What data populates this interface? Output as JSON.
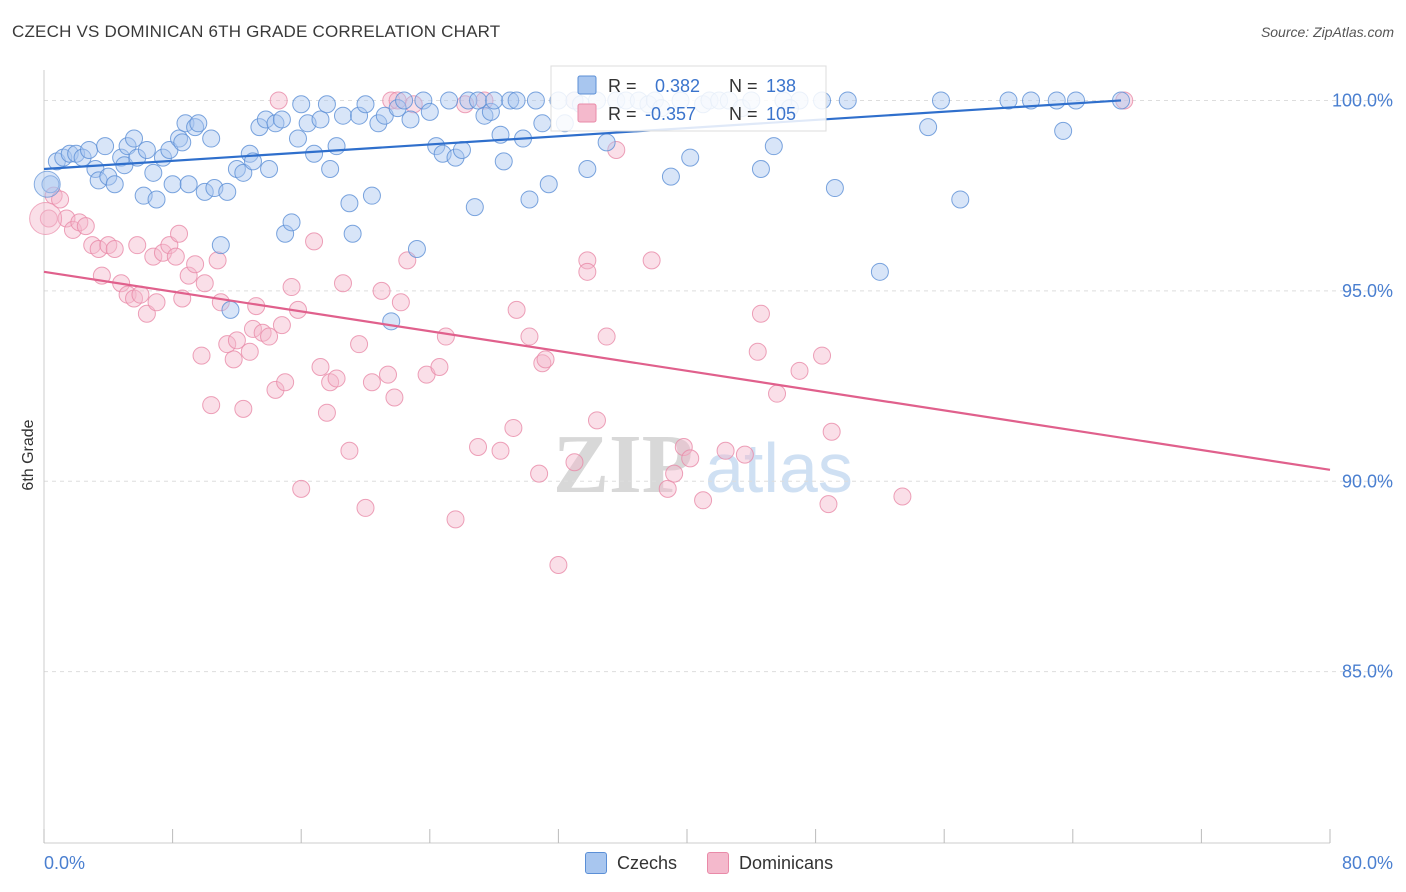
{
  "title": "CZECH VS DOMINICAN 6TH GRADE CORRELATION CHART",
  "source": "Source: ZipAtlas.com",
  "watermark": {
    "zip": "ZIP",
    "atlas": "atlas"
  },
  "legend": {
    "r_label": "R =",
    "n_label": "N =",
    "series": [
      {
        "name": "Czechs",
        "r": "0.382",
        "n": "138"
      },
      {
        "name": "Dominicans",
        "r": "-0.357",
        "n": "105"
      }
    ]
  },
  "colors": {
    "czech_fill": "#a8c6ef",
    "czech_stroke": "#5b8fd6",
    "czech_line": "#2f6fcc",
    "dominican_fill": "#f4b9cc",
    "dominican_stroke": "#e98aa8",
    "dominican_line": "#e0608c",
    "tick_text": "#4a7fd0",
    "grid": "#dddddd"
  },
  "chart_data": {
    "type": "scatter",
    "title": "CZECH VS DOMINICAN 6TH GRADE CORRELATION CHART",
    "xlabel": "",
    "ylabel": "6th Grade",
    "xlim": [
      0,
      80
    ],
    "ylim": [
      80.5,
      100.8
    ],
    "x_tick_labels": [
      "0.0%",
      "80.0%"
    ],
    "y_ticks": [
      85,
      90,
      95,
      100
    ],
    "y_tick_labels": [
      "85.0%",
      "90.0%",
      "95.0%",
      "100.0%"
    ],
    "grid": true,
    "legend_position": "top-center",
    "series": [
      {
        "name": "Czechs",
        "r": 0.382,
        "n": 138,
        "trend": [
          [
            0,
            98.2
          ],
          [
            67,
            100.0
          ]
        ],
        "points": [
          [
            0.4,
            97.8
          ],
          [
            0.8,
            98.4
          ],
          [
            1.2,
            98.5
          ],
          [
            1.6,
            98.6
          ],
          [
            2.0,
            98.6
          ],
          [
            2.4,
            98.5
          ],
          [
            2.8,
            98.7
          ],
          [
            3.2,
            98.2
          ],
          [
            3.4,
            97.9
          ],
          [
            3.8,
            98.8
          ],
          [
            4.0,
            98.0
          ],
          [
            4.4,
            97.8
          ],
          [
            4.8,
            98.5
          ],
          [
            5.0,
            98.3
          ],
          [
            5.2,
            98.8
          ],
          [
            5.6,
            99.0
          ],
          [
            5.8,
            98.5
          ],
          [
            6.2,
            97.5
          ],
          [
            6.4,
            98.7
          ],
          [
            6.8,
            98.1
          ],
          [
            7.0,
            97.4
          ],
          [
            7.4,
            98.5
          ],
          [
            7.8,
            98.7
          ],
          [
            8.0,
            97.8
          ],
          [
            8.4,
            99.0
          ],
          [
            8.6,
            98.9
          ],
          [
            8.8,
            99.4
          ],
          [
            9.0,
            97.8
          ],
          [
            9.4,
            99.3
          ],
          [
            9.6,
            99.4
          ],
          [
            10.0,
            97.6
          ],
          [
            10.4,
            99.0
          ],
          [
            10.6,
            97.7
          ],
          [
            11.0,
            96.2
          ],
          [
            11.4,
            97.6
          ],
          [
            11.6,
            94.5
          ],
          [
            12.0,
            98.2
          ],
          [
            12.4,
            98.1
          ],
          [
            12.8,
            98.6
          ],
          [
            13.0,
            98.4
          ],
          [
            13.4,
            99.3
          ],
          [
            13.8,
            99.5
          ],
          [
            14.0,
            98.2
          ],
          [
            14.4,
            99.4
          ],
          [
            14.8,
            99.5
          ],
          [
            15.0,
            96.5
          ],
          [
            15.4,
            96.8
          ],
          [
            15.8,
            99.0
          ],
          [
            16.0,
            99.9
          ],
          [
            16.4,
            99.4
          ],
          [
            16.8,
            98.6
          ],
          [
            17.2,
            99.5
          ],
          [
            17.6,
            99.9
          ],
          [
            17.8,
            98.2
          ],
          [
            18.2,
            98.8
          ],
          [
            18.6,
            99.6
          ],
          [
            19.0,
            97.3
          ],
          [
            19.2,
            96.5
          ],
          [
            19.6,
            99.6
          ],
          [
            20.0,
            99.9
          ],
          [
            20.4,
            97.5
          ],
          [
            20.8,
            99.4
          ],
          [
            21.2,
            99.6
          ],
          [
            21.6,
            94.2
          ],
          [
            22.0,
            99.8
          ],
          [
            22.4,
            100.0
          ],
          [
            22.8,
            99.5
          ],
          [
            23.2,
            96.1
          ],
          [
            23.6,
            100.0
          ],
          [
            24.0,
            99.7
          ],
          [
            24.4,
            98.8
          ],
          [
            24.8,
            98.6
          ],
          [
            25.2,
            100.0
          ],
          [
            25.6,
            98.5
          ],
          [
            26.0,
            98.7
          ],
          [
            26.4,
            100.0
          ],
          [
            26.8,
            97.2
          ],
          [
            27.0,
            100.0
          ],
          [
            27.4,
            99.6
          ],
          [
            27.8,
            99.7
          ],
          [
            28.0,
            100.0
          ],
          [
            28.4,
            99.1
          ],
          [
            28.6,
            98.4
          ],
          [
            29.0,
            100.0
          ],
          [
            29.4,
            100.0
          ],
          [
            29.8,
            99.0
          ],
          [
            30.2,
            97.4
          ],
          [
            30.6,
            100.0
          ],
          [
            31.0,
            99.4
          ],
          [
            31.4,
            97.8
          ],
          [
            32.0,
            100.0
          ],
          [
            32.4,
            99.4
          ],
          [
            33.0,
            100.0
          ],
          [
            33.4,
            99.9
          ],
          [
            33.8,
            98.2
          ],
          [
            34.4,
            100.0
          ],
          [
            35.0,
            98.9
          ],
          [
            35.6,
            100.0
          ],
          [
            36.2,
            100.0
          ],
          [
            37.0,
            100.0
          ],
          [
            37.6,
            99.9
          ],
          [
            38.0,
            100.0
          ],
          [
            38.4,
            99.8
          ],
          [
            39.0,
            98.0
          ],
          [
            39.6,
            100.0
          ],
          [
            40.2,
            98.5
          ],
          [
            41.0,
            99.9
          ],
          [
            41.4,
            100.0
          ],
          [
            42.0,
            100.0
          ],
          [
            42.6,
            100.0
          ],
          [
            43.4,
            99.8
          ],
          [
            44.0,
            100.0
          ],
          [
            44.6,
            98.2
          ],
          [
            45.4,
            98.8
          ],
          [
            46.0,
            100.0
          ],
          [
            47.0,
            100.0
          ],
          [
            48.4,
            100.0
          ],
          [
            49.2,
            97.7
          ],
          [
            50.0,
            100.0
          ],
          [
            52.0,
            95.5
          ],
          [
            55.8,
            100.0
          ],
          [
            55.0,
            99.3
          ],
          [
            57.0,
            97.4
          ],
          [
            60.0,
            100.0
          ],
          [
            61.4,
            100.0
          ],
          [
            63.0,
            100.0
          ],
          [
            63.4,
            99.2
          ],
          [
            64.2,
            100.0
          ],
          [
            67.0,
            100.0
          ],
          [
            46.4,
            99.8
          ]
        ]
      },
      {
        "name": "Dominicans",
        "r": -0.357,
        "n": 105,
        "trend": [
          [
            0,
            95.5
          ],
          [
            80,
            90.3
          ]
        ],
        "points": [
          [
            0.3,
            96.9
          ],
          [
            0.6,
            97.5
          ],
          [
            1.0,
            97.4
          ],
          [
            1.4,
            96.9
          ],
          [
            1.8,
            96.6
          ],
          [
            2.2,
            96.8
          ],
          [
            2.6,
            96.7
          ],
          [
            3.0,
            96.2
          ],
          [
            3.4,
            96.1
          ],
          [
            3.6,
            95.4
          ],
          [
            4.0,
            96.2
          ],
          [
            4.4,
            96.1
          ],
          [
            4.8,
            95.2
          ],
          [
            5.2,
            94.9
          ],
          [
            5.6,
            94.8
          ],
          [
            5.8,
            96.2
          ],
          [
            6.0,
            94.9
          ],
          [
            6.4,
            94.4
          ],
          [
            6.8,
            95.9
          ],
          [
            7.0,
            94.7
          ],
          [
            7.4,
            96.0
          ],
          [
            7.8,
            96.2
          ],
          [
            8.2,
            95.9
          ],
          [
            8.4,
            96.5
          ],
          [
            8.6,
            94.8
          ],
          [
            9.0,
            95.4
          ],
          [
            9.4,
            95.7
          ],
          [
            9.8,
            93.3
          ],
          [
            10.0,
            95.2
          ],
          [
            10.4,
            92.0
          ],
          [
            10.8,
            95.8
          ],
          [
            11.0,
            94.7
          ],
          [
            11.4,
            93.6
          ],
          [
            11.8,
            93.2
          ],
          [
            12.0,
            93.7
          ],
          [
            12.4,
            91.9
          ],
          [
            12.8,
            93.4
          ],
          [
            13.0,
            94.0
          ],
          [
            13.2,
            94.6
          ],
          [
            13.6,
            93.9
          ],
          [
            14.0,
            93.8
          ],
          [
            14.4,
            92.4
          ],
          [
            14.8,
            94.1
          ],
          [
            15.0,
            92.6
          ],
          [
            15.4,
            95.1
          ],
          [
            15.8,
            94.5
          ],
          [
            16.0,
            89.8
          ],
          [
            16.8,
            96.3
          ],
          [
            17.2,
            93.0
          ],
          [
            17.6,
            91.8
          ],
          [
            17.8,
            92.6
          ],
          [
            18.2,
            92.7
          ],
          [
            18.6,
            95.2
          ],
          [
            19.0,
            90.8
          ],
          [
            19.6,
            93.6
          ],
          [
            20.0,
            89.3
          ],
          [
            20.4,
            92.6
          ],
          [
            21.0,
            95.0
          ],
          [
            21.4,
            92.8
          ],
          [
            21.8,
            92.2
          ],
          [
            22.2,
            94.7
          ],
          [
            22.6,
            95.8
          ],
          [
            23.0,
            99.9
          ],
          [
            23.8,
            92.8
          ],
          [
            24.6,
            93.0
          ],
          [
            25.0,
            93.8
          ],
          [
            25.6,
            89.0
          ],
          [
            26.2,
            99.9
          ],
          [
            27.4,
            100.0
          ],
          [
            27.0,
            90.9
          ],
          [
            28.4,
            90.8
          ],
          [
            29.2,
            91.4
          ],
          [
            29.4,
            94.5
          ],
          [
            30.2,
            93.8
          ],
          [
            30.8,
            90.2
          ],
          [
            31.0,
            93.1
          ],
          [
            31.2,
            93.2
          ],
          [
            32.0,
            87.8
          ],
          [
            33.0,
            90.5
          ],
          [
            33.8,
            95.8
          ],
          [
            33.8,
            95.5
          ],
          [
            34.4,
            91.6
          ],
          [
            35.0,
            93.8
          ],
          [
            35.6,
            98.7
          ],
          [
            37.8,
            95.8
          ],
          [
            38.8,
            89.8
          ],
          [
            39.2,
            90.2
          ],
          [
            39.8,
            90.9
          ],
          [
            40.2,
            90.6
          ],
          [
            41.0,
            89.5
          ],
          [
            42.4,
            90.8
          ],
          [
            43.6,
            90.7
          ],
          [
            44.6,
            94.4
          ],
          [
            44.4,
            93.4
          ],
          [
            45.6,
            92.3
          ],
          [
            47.0,
            92.9
          ],
          [
            48.4,
            93.3
          ],
          [
            48.8,
            89.4
          ],
          [
            49.0,
            91.3
          ],
          [
            53.4,
            89.6
          ],
          [
            14.6,
            100.0
          ],
          [
            21.6,
            100.0
          ],
          [
            22.0,
            100.0
          ],
          [
            33.0,
            100.0
          ],
          [
            67.2,
            100.0
          ]
        ]
      }
    ]
  }
}
